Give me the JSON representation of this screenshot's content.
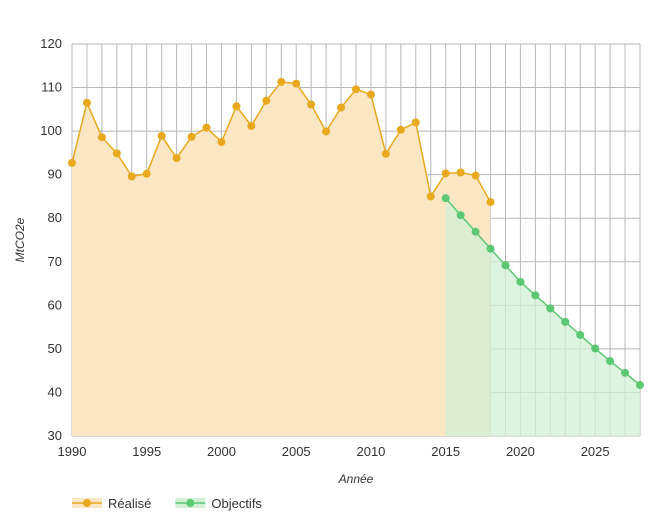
{
  "chart_data": {
    "type": "area",
    "xlabel": "Année",
    "ylabel": "MtCO2e",
    "xlim": [
      1990,
      2028
    ],
    "ylim": [
      30,
      120
    ],
    "x_ticks": [
      1990,
      1995,
      2000,
      2005,
      2010,
      2015,
      2020,
      2025
    ],
    "y_ticks": [
      30,
      40,
      50,
      60,
      70,
      80,
      90,
      100,
      110,
      120
    ],
    "grid": true,
    "legend_position": "bottom-left",
    "series": [
      {
        "name": "Réalisé",
        "color": "#E8A91E",
        "fill": "#FBE7C4",
        "x": [
          1990,
          1991,
          1992,
          1993,
          1994,
          1995,
          1996,
          1997,
          1998,
          1999,
          2000,
          2001,
          2002,
          2003,
          2004,
          2005,
          2006,
          2007,
          2008,
          2009,
          2010,
          2011,
          2012,
          2013,
          2014,
          2015,
          2016,
          2017,
          2018
        ],
        "values": [
          92.7,
          106.5,
          98.6,
          94.9,
          89.6,
          90.2,
          98.9,
          93.8,
          98.7,
          100.8,
          97.5,
          105.7,
          101.2,
          107.0,
          111.3,
          110.9,
          106.1,
          99.9,
          105.4,
          109.6,
          108.4,
          94.8,
          100.3,
          102.0,
          85.0,
          90.3,
          90.5,
          89.8,
          83.7
        ]
      },
      {
        "name": "Objectifs",
        "color": "#5CC873",
        "fill": "#D2F0D6",
        "x": [
          2015,
          2016,
          2017,
          2018,
          2019,
          2020,
          2021,
          2022,
          2023,
          2024,
          2025,
          2026,
          2027,
          2028
        ],
        "values": [
          84.6,
          80.7,
          76.9,
          73.0,
          69.2,
          65.4,
          62.3,
          59.3,
          56.2,
          53.2,
          50.1,
          47.2,
          44.5,
          41.7
        ]
      }
    ]
  }
}
